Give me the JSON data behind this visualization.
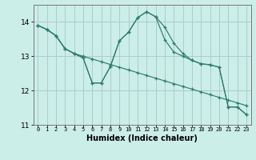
{
  "xlabel": "Humidex (Indice chaleur)",
  "background_color": "#cceee8",
  "line_color": "#2e7d6e",
  "grid_color": "#aacccc",
  "xlim": [
    -0.5,
    23.5
  ],
  "ylim": [
    11.0,
    14.5
  ],
  "yticks": [
    11,
    12,
    13,
    14
  ],
  "xticks": [
    0,
    1,
    2,
    3,
    4,
    5,
    6,
    7,
    8,
    9,
    10,
    11,
    12,
    13,
    14,
    15,
    16,
    17,
    18,
    19,
    20,
    21,
    22,
    23
  ],
  "series1": [
    13.9,
    13.78,
    13.6,
    13.22,
    13.08,
    13.0,
    12.92,
    12.84,
    12.76,
    12.68,
    12.6,
    12.52,
    12.44,
    12.36,
    12.28,
    12.2,
    12.12,
    12.04,
    11.96,
    11.88,
    11.8,
    11.72,
    11.64,
    11.56
  ],
  "series2": [
    13.9,
    13.78,
    13.6,
    13.22,
    13.08,
    12.95,
    12.22,
    12.22,
    12.7,
    13.45,
    13.7,
    14.12,
    14.3,
    14.15,
    13.48,
    13.12,
    13.0,
    12.88,
    12.78,
    12.75,
    12.68,
    11.52,
    11.52,
    11.3
  ],
  "series3": [
    13.9,
    13.78,
    13.6,
    13.22,
    13.08,
    12.95,
    12.22,
    12.22,
    12.7,
    13.45,
    13.7,
    14.12,
    14.3,
    14.15,
    13.85,
    13.38,
    13.08,
    12.88,
    12.78,
    12.75,
    12.68,
    11.52,
    11.52,
    11.3
  ],
  "x": [
    0,
    1,
    2,
    3,
    4,
    5,
    6,
    7,
    8,
    9,
    10,
    11,
    12,
    13,
    14,
    15,
    16,
    17,
    18,
    19,
    20,
    21,
    22,
    23
  ]
}
